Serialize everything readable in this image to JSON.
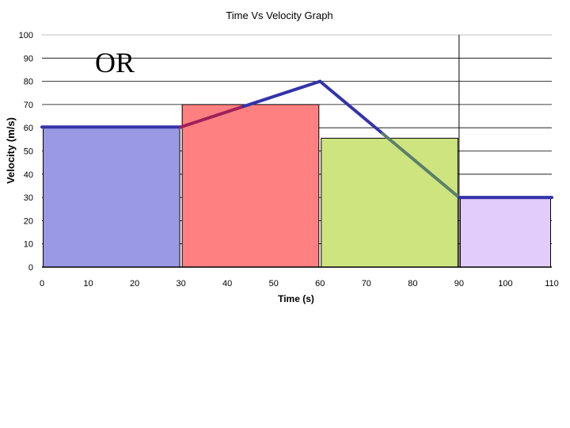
{
  "overlay_text": "OR",
  "chart_data": {
    "type": "line",
    "title": "Time Vs Velocity Graph",
    "xlabel": "Time (s)",
    "ylabel": "Velocity (m/s)",
    "xlim": [
      0,
      110
    ],
    "ylim": [
      0,
      100
    ],
    "x_ticks": [
      0,
      10,
      20,
      30,
      40,
      50,
      60,
      70,
      80,
      90,
      100,
      110
    ],
    "y_ticks": [
      0,
      10,
      20,
      30,
      40,
      50,
      60,
      70,
      80,
      90,
      100
    ],
    "grid": "horizontal",
    "legend": "none",
    "bars": [
      {
        "x0": 0,
        "x1": 30,
        "value": 60,
        "color": "#9999e6"
      },
      {
        "x0": 30,
        "x1": 60,
        "value": 70,
        "color": "#ff8080"
      },
      {
        "x0": 60,
        "x1": 90,
        "value": 55.5,
        "color": "#cde47f"
      },
      {
        "x0": 90,
        "x1": 110,
        "value": 29.5,
        "color": "#e2ccfb"
      }
    ],
    "series": [
      {
        "x": [
          0,
          30,
          60,
          90,
          110
        ],
        "y": [
          60,
          60,
          80,
          30,
          30
        ],
        "color": "#3333aa"
      }
    ],
    "segment_colors": [
      "#3333aa",
      "#a0205a",
      "#3333aa",
      "#5b7f6a",
      "#3333aa"
    ],
    "vertical_line_x": 90
  }
}
